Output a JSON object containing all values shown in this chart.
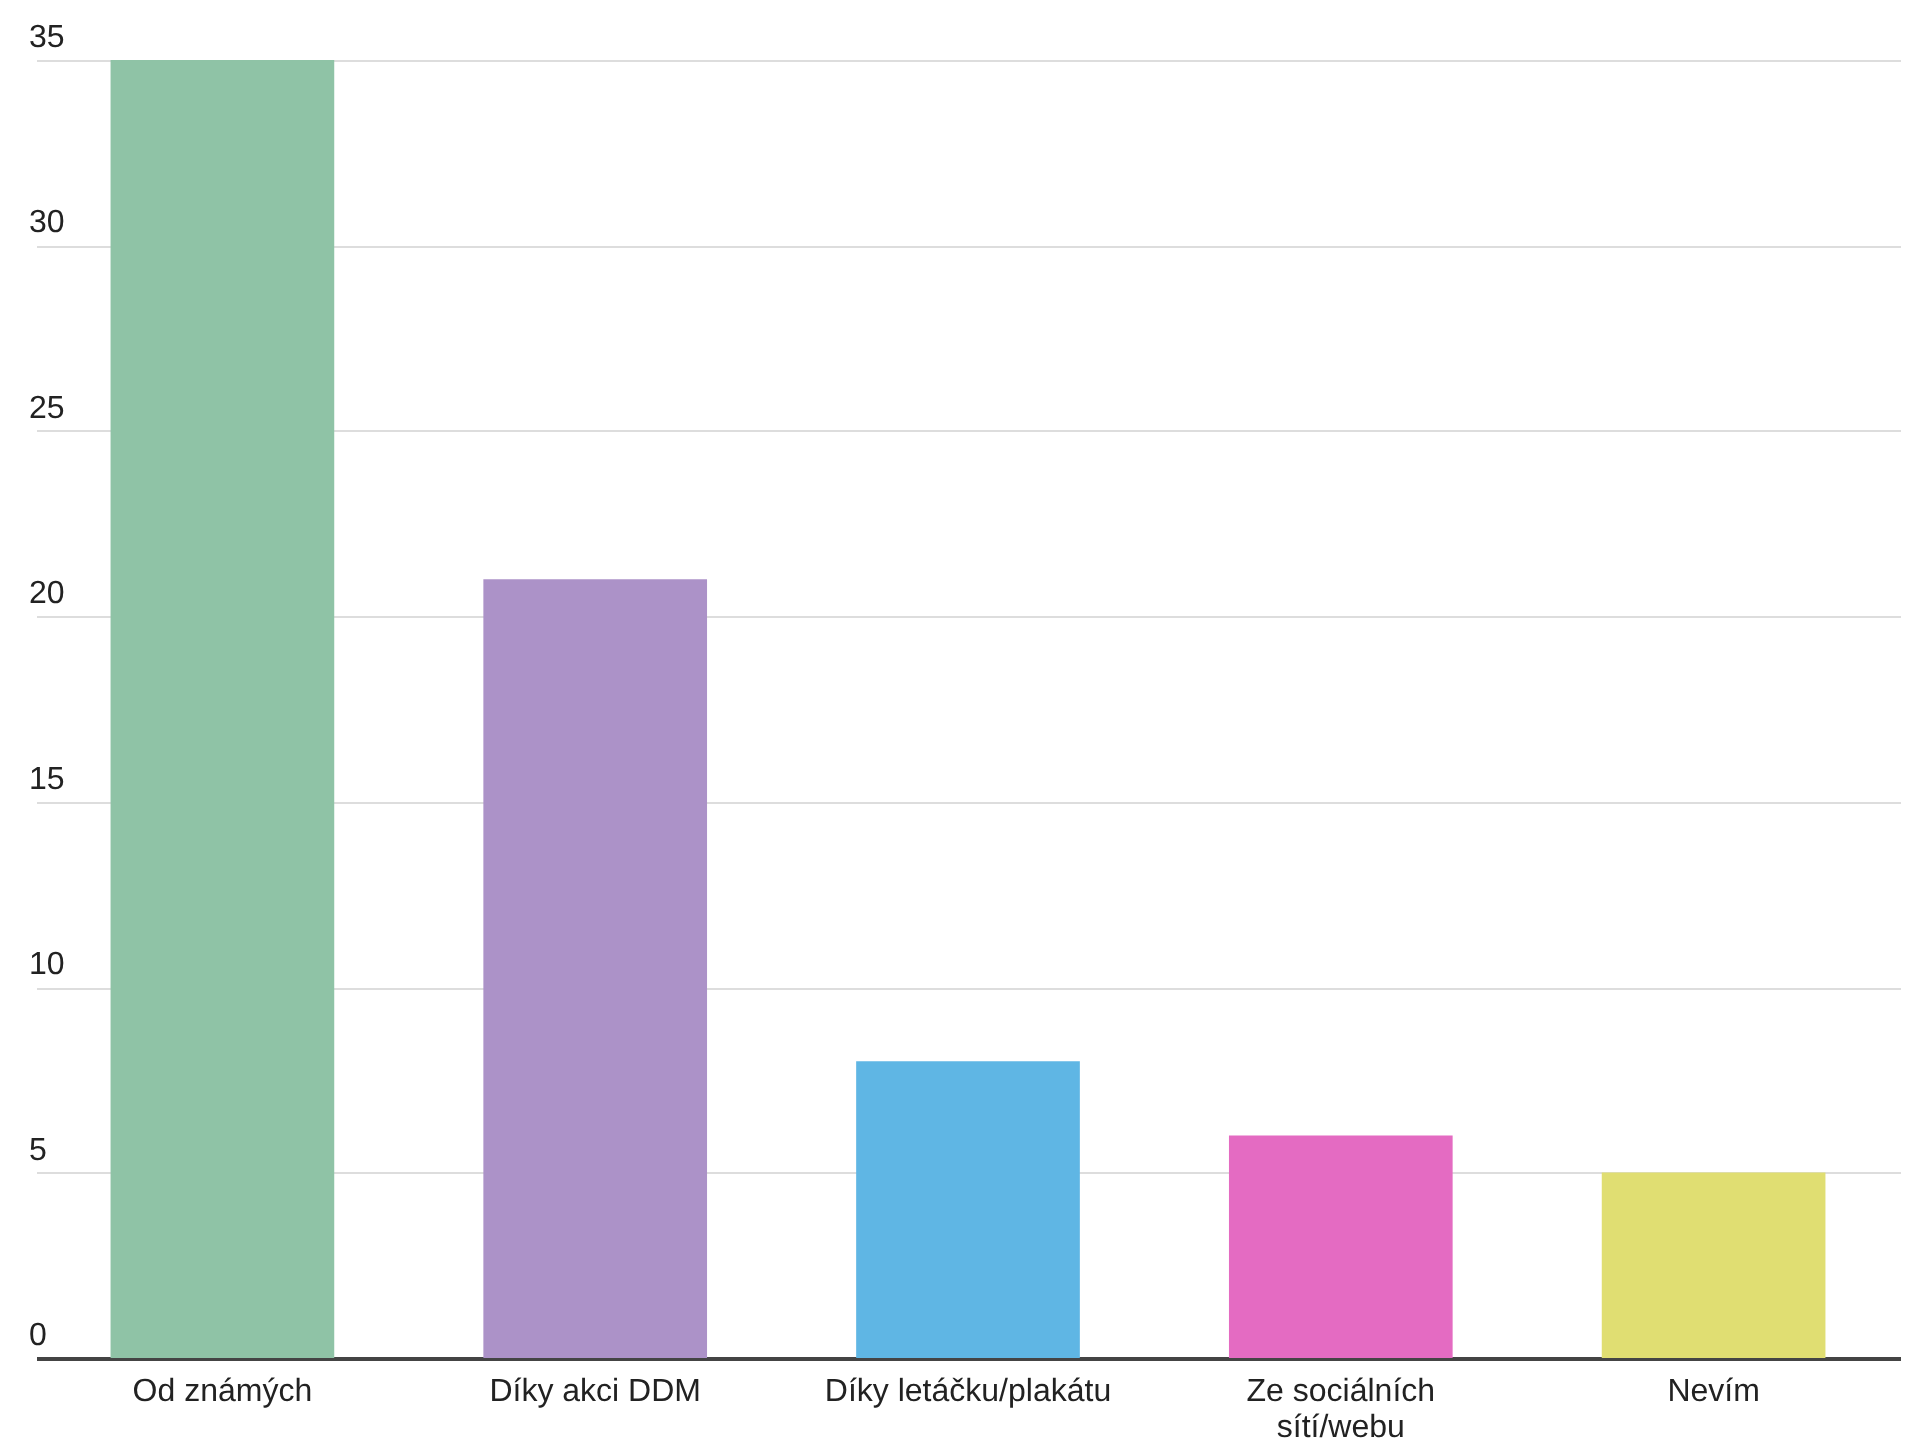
{
  "chart_data": {
    "type": "bar",
    "categories": [
      "Od známých",
      "Díky akci DDM",
      "Díky letáčku/plakátu",
      "Ze sociálních sítí/webu",
      "Nevím"
    ],
    "values": [
      35,
      21,
      8,
      6,
      5
    ],
    "colors": [
      "#8fc3a6",
      "#ac92c8",
      "#5fb6e4",
      "#e46bc2",
      "#e0de72"
    ],
    "ylim": [
      0,
      35
    ],
    "yticks": [
      0,
      5,
      10,
      15,
      20,
      25,
      30,
      35
    ],
    "grid": "y"
  }
}
